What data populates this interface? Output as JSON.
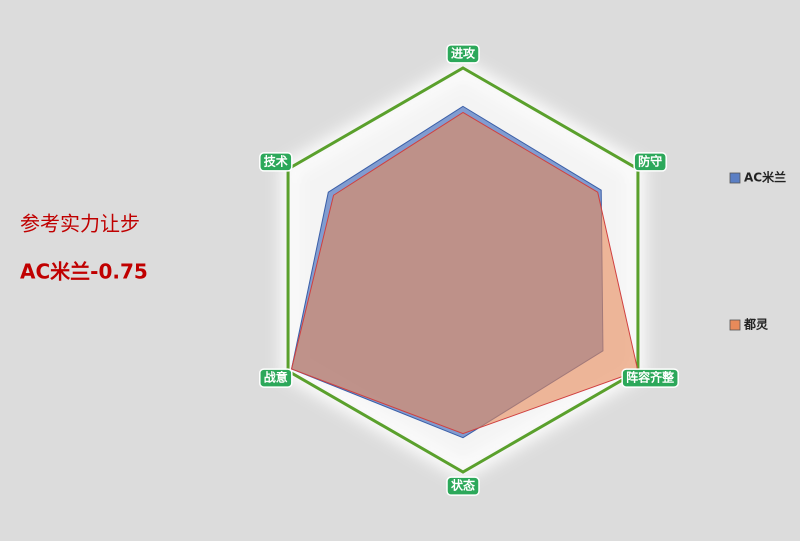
{
  "chart_data": {
    "type": "radar",
    "categories": [
      "进攻",
      "防守",
      "阵容齐整",
      "状态",
      "战意",
      "技术"
    ],
    "series": [
      {
        "name": "AC米兰",
        "color": "#5b7fc4",
        "values": [
          81,
          79,
          80,
          83,
          98,
          77
        ]
      },
      {
        "name": "都灵",
        "color": "#e88a5a",
        "values": [
          78,
          77,
          100,
          81,
          98,
          74
        ]
      }
    ],
    "ylim": [
      0,
      100
    ],
    "grid": true,
    "grid_color": "#5aa02c",
    "legend": "right",
    "annotations": [
      "参考实力让步",
      "AC米兰-0.75"
    ],
    "annotation_color": "#c00000"
  }
}
